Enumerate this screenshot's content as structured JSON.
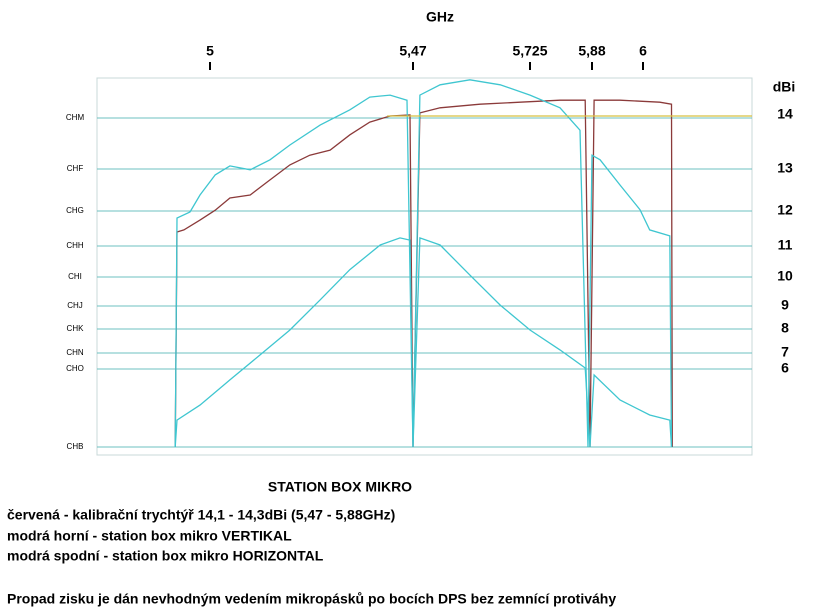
{
  "chart_data": {
    "type": "line",
    "title": "STATION BOX MIKRO",
    "x_label": "GHz",
    "y_label": "dBi",
    "xlim": [
      4.74,
      6.26
    ],
    "xticks": [
      5,
      {
        "value": 5.47,
        "label": "5,47"
      },
      {
        "value": 5.725,
        "label": "5,725"
      },
      {
        "value": 5.88,
        "label": "5,88"
      },
      6
    ],
    "ylim": [
      2,
      15
    ],
    "yticks": [
      14,
      13,
      12,
      11,
      10,
      9,
      8,
      7,
      6
    ],
    "left_labels": [
      {
        "value": 14,
        "label": "CHM"
      },
      {
        "value": 13,
        "label": "CHF"
      },
      {
        "value": 12,
        "label": "CHG"
      },
      {
        "value": 11,
        "label": "CHH"
      },
      {
        "value": 10,
        "label": "CHI"
      },
      {
        "value": 9,
        "label": "CHJ"
      },
      {
        "value": 8,
        "label": "CHK"
      },
      {
        "value": 7,
        "label": "CHN"
      },
      {
        "value": 6,
        "label": "CHO"
      },
      {
        "value": 2,
        "label": "CHB"
      }
    ],
    "series": [
      {
        "color": "#8b3a3a",
        "x": [
          4.92,
          4.924,
          4.94,
          4.977,
          5.012,
          5.046,
          5.093,
          5.139,
          5.185,
          5.231,
          5.278,
          5.324,
          5.37,
          5.417,
          5.463,
          5.47,
          5.485,
          5.529,
          5.616,
          5.703,
          5.8,
          5.863,
          5.875,
          5.885,
          5.946,
          6.04,
          6.068,
          6.07
        ],
        "values": [
          2,
          11.4,
          11.46,
          11.74,
          12.02,
          12.31,
          12.38,
          12.74,
          13.08,
          13.27,
          13.37,
          13.67,
          13.92,
          14.04,
          14.06,
          2,
          14.1,
          14.2,
          14.27,
          14.31,
          14.35,
          14.35,
          2,
          14.35,
          14.35,
          14.31,
          14.27,
          2
        ]
      },
      {
        "color": "#3fc6d0",
        "x": [
          4.92,
          4.924,
          4.954,
          4.977,
          5.012,
          5.046,
          5.093,
          5.139,
          5.185,
          5.255,
          5.324,
          5.37,
          5.417,
          5.456,
          5.47,
          5.485,
          5.529,
          5.594,
          5.66,
          5.725,
          5.8,
          5.85,
          5.87,
          5.88,
          5.899,
          5.946,
          5.993,
          6.016,
          6.064,
          6.068
        ],
        "values": [
          2,
          11.8,
          11.97,
          12.38,
          12.86,
          13.06,
          12.98,
          13.18,
          13.47,
          13.86,
          14.16,
          14.41,
          14.45,
          14.35,
          2,
          14.45,
          14.65,
          14.75,
          14.65,
          14.45,
          14.2,
          13.76,
          2,
          13.27,
          13.18,
          12.62,
          12.03,
          11.46,
          11.29,
          2
        ]
      },
      {
        "color": "#3fc6d0",
        "x": [
          4.92,
          4.924,
          4.977,
          5.046,
          5.116,
          5.185,
          5.255,
          5.324,
          5.394,
          5.44,
          5.463,
          5.47,
          5.485,
          5.529,
          5.594,
          5.66,
          5.725,
          5.8,
          5.863,
          5.875,
          5.885,
          5.946,
          6.016,
          6.064,
          6.068
        ],
        "values": [
          2,
          3.38,
          4.15,
          5.44,
          6.88,
          7.96,
          9.21,
          10.24,
          11.03,
          11.23,
          11.17,
          2,
          11.23,
          11.03,
          10.06,
          9.03,
          7.96,
          7.13,
          6.06,
          2,
          5.69,
          4.41,
          3.64,
          3.38,
          2
        ]
      },
      {
        "color": "#d8c040",
        "x": [
          5.41,
          6.26
        ],
        "values": [
          14.04,
          14.04
        ]
      }
    ],
    "notes": [
      "červená - kalibrační trychtýř 14,1 - 14,3dBi  (5,47 - 5,88GHz)",
      "modrá horní - station box mikro VERTIKAL",
      "modrá spodní - station box mikro HORIZONTAL",
      "Propad zisku je dán nevhodným vedením mikropásků po bocích DPS bez zemnící protiváhy"
    ]
  }
}
